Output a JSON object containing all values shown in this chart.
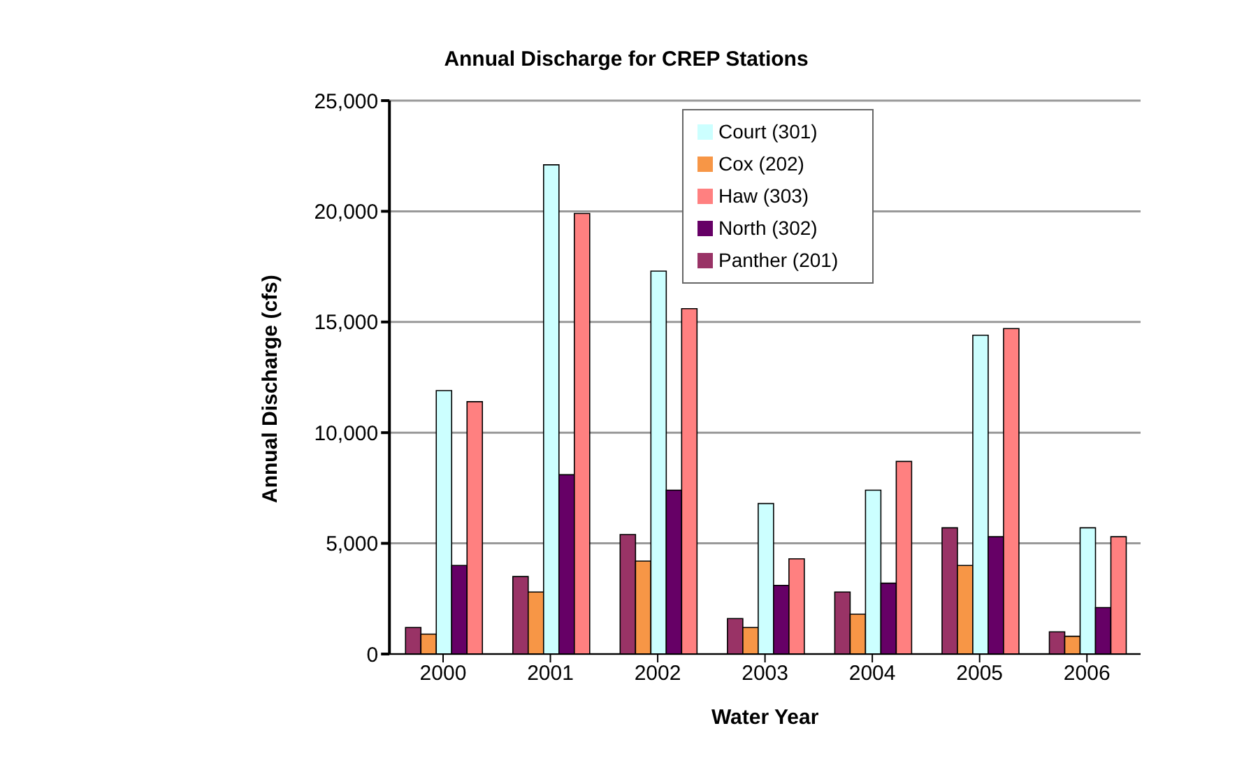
{
  "chart_data": {
    "type": "bar",
    "title": "Annual Discharge for CREP Stations",
    "xlabel": "Water Year",
    "ylabel": "Annual Discharge (cfs)",
    "categories": [
      "2000",
      "2001",
      "2002",
      "2003",
      "2004",
      "2005",
      "2006"
    ],
    "series": [
      {
        "name": "Panther (201)",
        "color": "#993366",
        "values": [
          1200,
          3500,
          5400,
          1600,
          2800,
          5700,
          1000
        ]
      },
      {
        "name": "Cox (202)",
        "color": "#f79646",
        "values": [
          900,
          2800,
          4200,
          1200,
          1800,
          4000,
          800
        ]
      },
      {
        "name": "Court (301)",
        "color": "#ccffff",
        "values": [
          11900,
          22100,
          17300,
          6800,
          7400,
          14400,
          5700
        ]
      },
      {
        "name": "North (302)",
        "color": "#660066",
        "values": [
          4000,
          8100,
          7400,
          3100,
          3200,
          5300,
          2100
        ]
      },
      {
        "name": "Haw (303)",
        "color": "#ff8080",
        "values": [
          11400,
          19900,
          15600,
          4300,
          8700,
          14700,
          5300
        ]
      }
    ],
    "ylim": [
      0,
      25000
    ],
    "yticks": [
      {
        "value": 0,
        "label": "0"
      },
      {
        "value": 5000,
        "label": "5,000"
      },
      {
        "value": 10000,
        "label": "10,000"
      },
      {
        "value": 15000,
        "label": "15,000"
      },
      {
        "value": 20000,
        "label": "20,000"
      },
      {
        "value": 25000,
        "label": "25,000"
      }
    ],
    "grid": "y",
    "legend": "top right"
  }
}
